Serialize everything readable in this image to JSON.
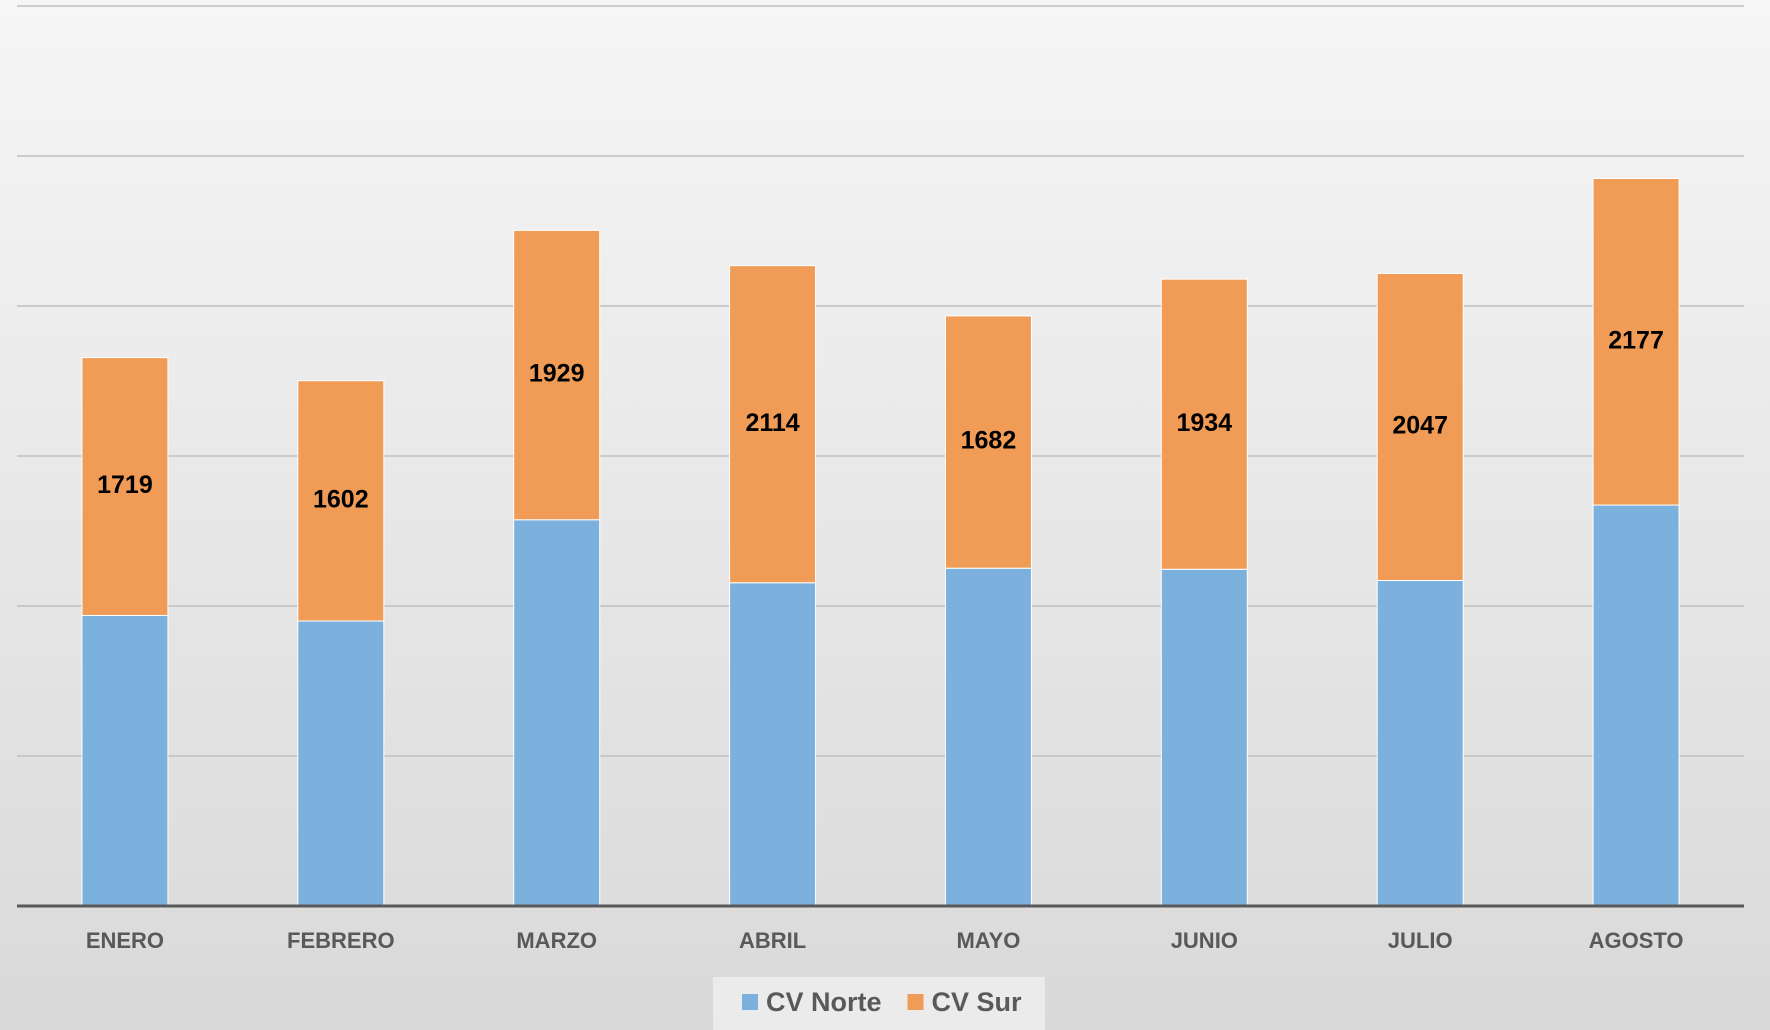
{
  "chart_data": {
    "type": "bar",
    "stacked": true,
    "categories": [
      "ENERO",
      "FEBRERO",
      "MARZO",
      "ABRIL",
      "MAYO",
      "JUNIO",
      "JULIO",
      "AGOSTO"
    ],
    "series": [
      {
        "name": "CV Norte",
        "color": "#7cb1dd",
        "values": [
          1937,
          1900,
          2575,
          2155,
          2252,
          2245,
          2170,
          2673
        ]
      },
      {
        "name": "CV Sur",
        "color": "#f09c57",
        "values": [
          1719,
          1602,
          1929,
          2114,
          1682,
          1934,
          2047,
          2177
        ],
        "data_labels": true
      }
    ],
    "ylim": [
      0,
      6000
    ],
    "yticks": [
      0,
      1000,
      2000,
      3000,
      4000,
      5000,
      6000
    ],
    "grid": true,
    "legend": "bottom"
  }
}
